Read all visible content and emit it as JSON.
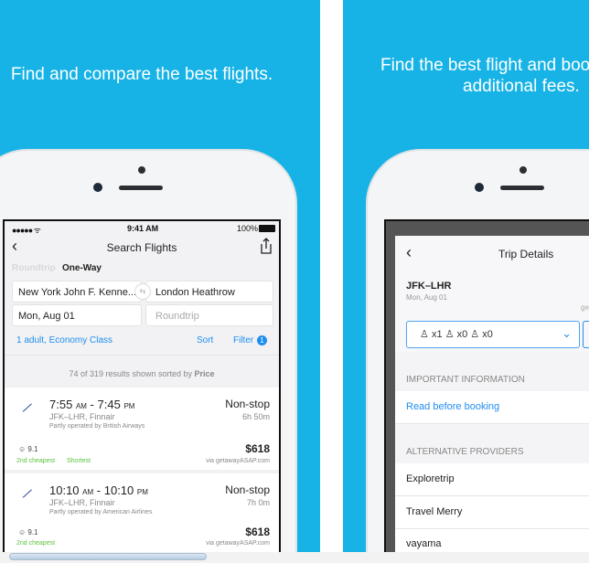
{
  "left_panel": {
    "tagline": "Find and compare the best flights.",
    "status": {
      "time": "9:41 AM",
      "battery": "100%"
    },
    "nav": {
      "title": "Search Flights",
      "back_icon": "chevron-left-icon",
      "share_icon": "share-icon"
    },
    "trip_type": {
      "roundtrip": "Roundtrip",
      "one_way": "One-Way"
    },
    "from": "New York John F. Kenne...",
    "to": "London Heathrow",
    "depart_date": "Mon, Aug 01",
    "return_placeholder": "Roundtrip",
    "passengers": "1 adult, Economy Class",
    "sort": "Sort",
    "filter": "Filter",
    "filter_count": "1",
    "results_summary": "74 of 319 results shown sorted by",
    "results_sort": "Price",
    "results": [
      {
        "dep": "7:55",
        "dep_ampm": "AM",
        "arr": "7:45",
        "arr_ampm": "PM",
        "route": "JFK–LHR, Finnair",
        "operated": "Partly operated by British Airways",
        "stops": "Non-stop",
        "duration": "6h 50m",
        "score": "9.1",
        "tags": [
          "2nd cheapest",
          "Shortest"
        ],
        "price": "$618",
        "via": "via getawayASAP.com"
      },
      {
        "dep": "10:10",
        "dep_ampm": "AM",
        "arr": "10:10",
        "arr_ampm": "PM",
        "route": "JFK–LHR, Finnair",
        "operated": "Partly operated by American Airlines",
        "stops": "Non-stop",
        "duration": "7h 0m",
        "score": "9.1",
        "tags": [
          "2nd cheapest"
        ],
        "price": "$618",
        "via": "via getawayASAP.com"
      }
    ]
  },
  "right_panel": {
    "tagline_line1": "Find the best flight and boo",
    "tagline_line2": "additional fees.",
    "nav": {
      "title": "Trip Details"
    },
    "route": "JFK–LHR",
    "date": "Mon, Aug 01",
    "partial_text": "ge",
    "passengers": {
      "adults": "x1",
      "children": "x0",
      "infants": "x0"
    },
    "important_header": "IMPORTANT INFORMATION",
    "read_link": "Read before booking",
    "providers_header": "ALTERNATIVE PROVIDERS",
    "providers": [
      "Exploretrip",
      "Travel Merry",
      "vayama"
    ]
  },
  "colors": {
    "background": "#17b3e6",
    "accent": "#1e8ef0",
    "tag_green": "#5cc23e"
  }
}
